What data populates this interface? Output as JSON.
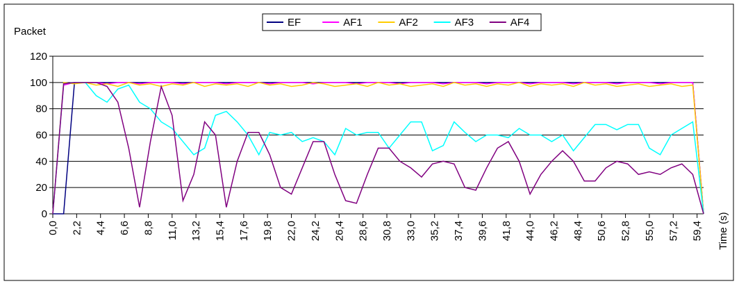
{
  "chart_data": {
    "type": "line",
    "y_label": "Packet",
    "x_label": "Time (s)",
    "xlim": [
      0,
      60
    ],
    "ylim": [
      0,
      120
    ],
    "yticks": [
      0,
      20,
      40,
      60,
      80,
      100,
      120
    ],
    "xticks": [
      {
        "value": 0,
        "label": "0,0"
      },
      {
        "value": 2.2,
        "label": "2,2"
      },
      {
        "value": 4.4,
        "label": "4,4"
      },
      {
        "value": 6.6,
        "label": "6,6"
      },
      {
        "value": 8.8,
        "label": "8,8"
      },
      {
        "value": 11,
        "label": "11,0"
      },
      {
        "value": 13.2,
        "label": "13,2"
      },
      {
        "value": 15.4,
        "label": "15,4"
      },
      {
        "value": 17.6,
        "label": "17,6"
      },
      {
        "value": 19.8,
        "label": "19,8"
      },
      {
        "value": 22,
        "label": "22,0"
      },
      {
        "value": 24.2,
        "label": "24,2"
      },
      {
        "value": 26.4,
        "label": "26,4"
      },
      {
        "value": 28.6,
        "label": "28,6"
      },
      {
        "value": 30.8,
        "label": "30,8"
      },
      {
        "value": 33,
        "label": "33,0"
      },
      {
        "value": 35.2,
        "label": "35,2"
      },
      {
        "value": 37.4,
        "label": "37,4"
      },
      {
        "value": 39.6,
        "label": "39,6"
      },
      {
        "value": 41.8,
        "label": "41,8"
      },
      {
        "value": 44,
        "label": "44,0"
      },
      {
        "value": 46.2,
        "label": "46,2"
      },
      {
        "value": 48.4,
        "label": "48,4"
      },
      {
        "value": 50.6,
        "label": "50,6"
      },
      {
        "value": 52.8,
        "label": "52,8"
      },
      {
        "value": 55,
        "label": "55,0"
      },
      {
        "value": 57.2,
        "label": "57,2"
      },
      {
        "value": 59.4,
        "label": "59,4"
      }
    ],
    "grid": true,
    "legend": "top",
    "x": [
      0,
      1,
      2,
      3,
      4,
      5,
      6,
      7,
      8,
      9,
      10,
      11,
      12,
      13,
      14,
      15,
      16,
      17,
      18,
      19,
      20,
      21,
      22,
      23,
      24,
      25,
      26,
      27,
      28,
      29,
      30,
      31,
      32,
      33,
      34,
      35,
      36,
      37,
      38,
      39,
      40,
      41,
      42,
      43,
      44,
      45,
      46,
      47,
      48,
      49,
      50,
      51,
      52,
      53,
      54,
      55,
      56,
      57,
      58,
      59,
      60
    ],
    "series": [
      {
        "name": "EF",
        "color": "#000080",
        "values": [
          0,
          0,
          100,
          100,
          100,
          100,
          100,
          100,
          100,
          100,
          100,
          100,
          100,
          100,
          100,
          100,
          100,
          100,
          100,
          100,
          100,
          100,
          100,
          100,
          100,
          100,
          100,
          100,
          100,
          100,
          100,
          100,
          100,
          100,
          100,
          100,
          100,
          100,
          100,
          100,
          100,
          100,
          100,
          100,
          100,
          100,
          100,
          100,
          100,
          100,
          100,
          100,
          100,
          100,
          100,
          100,
          100,
          100,
          100,
          100,
          0
        ]
      },
      {
        "name": "AF1",
        "color": "#ff00ff",
        "values": [
          0,
          98,
          100,
          100,
          100,
          99,
          100,
          100,
          99,
          100,
          100,
          100,
          99,
          100,
          100,
          100,
          99,
          100,
          100,
          100,
          99,
          100,
          100,
          100,
          99,
          100,
          100,
          100,
          99,
          100,
          100,
          100,
          99,
          100,
          100,
          100,
          99,
          100,
          100,
          100,
          99,
          100,
          100,
          100,
          99,
          100,
          100,
          100,
          99,
          100,
          100,
          100,
          99,
          100,
          100,
          100,
          99,
          100,
          100,
          100,
          0
        ]
      },
      {
        "name": "AF2",
        "color": "#ffcc00",
        "values": [
          0,
          100,
          99,
          100,
          98,
          99,
          97,
          100,
          98,
          99,
          97,
          99,
          98,
          100,
          97,
          99,
          98,
          99,
          97,
          100,
          98,
          99,
          97,
          98,
          100,
          99,
          97,
          98,
          99,
          97,
          100,
          98,
          99,
          97,
          98,
          99,
          97,
          100,
          98,
          99,
          97,
          99,
          98,
          100,
          97,
          99,
          98,
          99,
          97,
          100,
          98,
          99,
          97,
          98,
          99,
          97,
          98,
          99,
          97,
          98,
          0
        ]
      },
      {
        "name": "AF3",
        "color": "#00ffff",
        "values": [
          0,
          99,
          100,
          100,
          90,
          85,
          95,
          98,
          85,
          80,
          70,
          65,
          55,
          45,
          50,
          75,
          78,
          70,
          60,
          45,
          62,
          60,
          62,
          55,
          58,
          55,
          45,
          65,
          60,
          62,
          62,
          50,
          60,
          70,
          70,
          48,
          52,
          70,
          62,
          55,
          60,
          60,
          58,
          65,
          60,
          60,
          55,
          60,
          48,
          58,
          68,
          68,
          64,
          68,
          68,
          50,
          45,
          60,
          65,
          70,
          0
        ]
      },
      {
        "name": "AF4",
        "color": "#800080",
        "values": [
          0,
          99,
          100,
          100,
          100,
          97,
          85,
          50,
          5,
          55,
          97,
          75,
          10,
          30,
          70,
          60,
          5,
          40,
          62,
          62,
          45,
          20,
          15,
          35,
          55,
          55,
          30,
          10,
          8,
          30,
          50,
          50,
          40,
          35,
          28,
          38,
          40,
          38,
          20,
          18,
          35,
          50,
          55,
          40,
          15,
          30,
          40,
          48,
          40,
          25,
          25,
          35,
          40,
          38,
          30,
          32,
          30,
          35,
          38,
          30,
          0
        ]
      }
    ]
  }
}
